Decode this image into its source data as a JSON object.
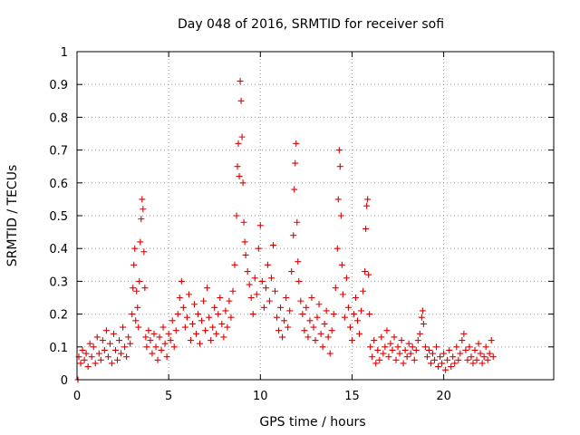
{
  "chart_data": {
    "type": "scatter",
    "title": "Day 048 of 2016, SRMTID for receiver sofi",
    "xlabel": "GPS time / hours",
    "ylabel": "SRMTID / TECUs",
    "xlim": [
      0,
      26
    ],
    "ylim": [
      0,
      1
    ],
    "xticks": [
      0,
      5,
      10,
      15,
      20
    ],
    "xtick_labels": [
      "0",
      "5",
      "10",
      "15",
      "20"
    ],
    "yticks": [
      0,
      0.1,
      0.2,
      0.3,
      0.4,
      0.5,
      0.6,
      0.7,
      0.8,
      0.9,
      1
    ],
    "ytick_labels": [
      "0",
      "0.1",
      "0.2",
      "0.3",
      "0.4",
      "0.5",
      "0.6",
      "0.7",
      "0.8",
      "0.9",
      "1"
    ],
    "grid": true,
    "marker": "+",
    "series": [
      {
        "name": "SRMTID",
        "color": "#e00000",
        "points": [
          [
            0.05,
            0.0
          ],
          [
            0.1,
            0.07
          ],
          [
            0.2,
            0.05
          ],
          [
            0.3,
            0.09
          ],
          [
            0.4,
            0.06
          ],
          [
            0.5,
            0.08
          ],
          [
            0.6,
            0.04
          ],
          [
            0.7,
            0.11
          ],
          [
            0.8,
            0.07
          ],
          [
            0.9,
            0.1
          ],
          [
            1.0,
            0.05
          ],
          [
            1.1,
            0.13
          ],
          [
            1.2,
            0.08
          ],
          [
            1.3,
            0.06
          ],
          [
            1.4,
            0.12
          ],
          [
            1.5,
            0.09
          ],
          [
            1.6,
            0.15
          ],
          [
            1.7,
            0.07
          ],
          [
            1.8,
            0.11
          ],
          [
            1.9,
            0.05
          ],
          [
            2.0,
            0.14
          ],
          [
            2.1,
            0.09
          ],
          [
            2.2,
            0.06
          ],
          [
            2.3,
            0.12
          ],
          [
            2.4,
            0.08
          ],
          [
            2.5,
            0.16
          ],
          [
            2.6,
            0.1
          ],
          [
            2.7,
            0.07
          ],
          [
            2.8,
            0.13
          ],
          [
            2.9,
            0.11
          ],
          [
            3.0,
            0.2
          ],
          [
            3.05,
            0.28
          ],
          [
            3.1,
            0.35
          ],
          [
            3.15,
            0.4
          ],
          [
            3.2,
            0.18
          ],
          [
            3.25,
            0.27
          ],
          [
            3.3,
            0.22
          ],
          [
            3.35,
            0.16
          ],
          [
            3.4,
            0.3
          ],
          [
            3.45,
            0.42
          ],
          [
            3.5,
            0.49
          ],
          [
            3.55,
            0.55
          ],
          [
            3.6,
            0.52
          ],
          [
            3.65,
            0.39
          ],
          [
            3.7,
            0.28
          ],
          [
            3.75,
            0.13
          ],
          [
            3.8,
            0.1
          ],
          [
            3.9,
            0.15
          ],
          [
            4.0,
            0.12
          ],
          [
            4.1,
            0.08
          ],
          [
            4.2,
            0.14
          ],
          [
            4.3,
            0.1
          ],
          [
            4.4,
            0.06
          ],
          [
            4.5,
            0.13
          ],
          [
            4.6,
            0.09
          ],
          [
            4.7,
            0.16
          ],
          [
            4.8,
            0.11
          ],
          [
            4.9,
            0.07
          ],
          [
            5.0,
            0.14
          ],
          [
            5.1,
            0.12
          ],
          [
            5.2,
            0.18
          ],
          [
            5.3,
            0.1
          ],
          [
            5.4,
            0.15
          ],
          [
            5.5,
            0.2
          ],
          [
            5.6,
            0.25
          ],
          [
            5.7,
            0.3
          ],
          [
            5.8,
            0.22
          ],
          [
            5.9,
            0.16
          ],
          [
            6.0,
            0.19
          ],
          [
            6.1,
            0.26
          ],
          [
            6.2,
            0.12
          ],
          [
            6.3,
            0.17
          ],
          [
            6.4,
            0.23
          ],
          [
            6.5,
            0.14
          ],
          [
            6.6,
            0.2
          ],
          [
            6.7,
            0.11
          ],
          [
            6.8,
            0.18
          ],
          [
            6.9,
            0.24
          ],
          [
            7.0,
            0.15
          ],
          [
            7.1,
            0.28
          ],
          [
            7.2,
            0.19
          ],
          [
            7.3,
            0.12
          ],
          [
            7.4,
            0.16
          ],
          [
            7.5,
            0.22
          ],
          [
            7.6,
            0.14
          ],
          [
            7.7,
            0.2
          ],
          [
            7.8,
            0.25
          ],
          [
            7.9,
            0.17
          ],
          [
            8.0,
            0.13
          ],
          [
            8.1,
            0.21
          ],
          [
            8.2,
            0.16
          ],
          [
            8.3,
            0.24
          ],
          [
            8.4,
            0.19
          ],
          [
            8.5,
            0.27
          ],
          [
            8.6,
            0.35
          ],
          [
            8.7,
            0.5
          ],
          [
            8.75,
            0.65
          ],
          [
            8.8,
            0.72
          ],
          [
            8.85,
            0.62
          ],
          [
            8.9,
            0.91
          ],
          [
            8.95,
            0.85
          ],
          [
            9.0,
            0.74
          ],
          [
            9.05,
            0.6
          ],
          [
            9.1,
            0.48
          ],
          [
            9.15,
            0.42
          ],
          [
            9.2,
            0.38
          ],
          [
            9.3,
            0.33
          ],
          [
            9.4,
            0.29
          ],
          [
            9.5,
            0.25
          ],
          [
            9.6,
            0.2
          ],
          [
            9.7,
            0.31
          ],
          [
            9.8,
            0.26
          ],
          [
            9.9,
            0.4
          ],
          [
            10.0,
            0.47
          ],
          [
            10.1,
            0.3
          ],
          [
            10.2,
            0.22
          ],
          [
            10.3,
            0.28
          ],
          [
            10.4,
            0.35
          ],
          [
            10.5,
            0.24
          ],
          [
            10.6,
            0.31
          ],
          [
            10.7,
            0.41
          ],
          [
            10.8,
            0.27
          ],
          [
            10.9,
            0.19
          ],
          [
            11.0,
            0.15
          ],
          [
            11.1,
            0.22
          ],
          [
            11.2,
            0.13
          ],
          [
            11.3,
            0.18
          ],
          [
            11.4,
            0.25
          ],
          [
            11.5,
            0.16
          ],
          [
            11.6,
            0.21
          ],
          [
            11.7,
            0.33
          ],
          [
            11.8,
            0.44
          ],
          [
            11.85,
            0.58
          ],
          [
            11.9,
            0.66
          ],
          [
            11.95,
            0.72
          ],
          [
            12.0,
            0.48
          ],
          [
            12.05,
            0.36
          ],
          [
            12.1,
            0.3
          ],
          [
            12.2,
            0.24
          ],
          [
            12.3,
            0.2
          ],
          [
            12.4,
            0.15
          ],
          [
            12.5,
            0.22
          ],
          [
            12.6,
            0.13
          ],
          [
            12.7,
            0.18
          ],
          [
            12.8,
            0.25
          ],
          [
            12.9,
            0.16
          ],
          [
            13.0,
            0.12
          ],
          [
            13.1,
            0.19
          ],
          [
            13.2,
            0.23
          ],
          [
            13.3,
            0.14
          ],
          [
            13.4,
            0.1
          ],
          [
            13.5,
            0.17
          ],
          [
            13.6,
            0.21
          ],
          [
            13.7,
            0.13
          ],
          [
            13.8,
            0.08
          ],
          [
            13.9,
            0.15
          ],
          [
            14.0,
            0.2
          ],
          [
            14.1,
            0.28
          ],
          [
            14.2,
            0.4
          ],
          [
            14.25,
            0.55
          ],
          [
            14.3,
            0.7
          ],
          [
            14.35,
            0.65
          ],
          [
            14.4,
            0.5
          ],
          [
            14.45,
            0.35
          ],
          [
            14.5,
            0.26
          ],
          [
            14.6,
            0.19
          ],
          [
            14.7,
            0.31
          ],
          [
            14.8,
            0.22
          ],
          [
            14.9,
            0.16
          ],
          [
            15.0,
            0.12
          ],
          [
            15.1,
            0.2
          ],
          [
            15.2,
            0.25
          ],
          [
            15.3,
            0.18
          ],
          [
            15.4,
            0.14
          ],
          [
            15.5,
            0.21
          ],
          [
            15.6,
            0.27
          ],
          [
            15.7,
            0.33
          ],
          [
            15.75,
            0.46
          ],
          [
            15.8,
            0.53
          ],
          [
            15.85,
            0.55
          ],
          [
            15.9,
            0.32
          ],
          [
            15.95,
            0.2
          ],
          [
            16.0,
            0.1
          ],
          [
            16.1,
            0.07
          ],
          [
            16.2,
            0.12
          ],
          [
            16.3,
            0.05
          ],
          [
            16.4,
            0.09
          ],
          [
            16.5,
            0.06
          ],
          [
            16.6,
            0.13
          ],
          [
            16.7,
            0.08
          ],
          [
            16.8,
            0.1
          ],
          [
            16.9,
            0.15
          ],
          [
            17.0,
            0.07
          ],
          [
            17.1,
            0.11
          ],
          [
            17.2,
            0.09
          ],
          [
            17.3,
            0.13
          ],
          [
            17.4,
            0.06
          ],
          [
            17.5,
            0.1
          ],
          [
            17.6,
            0.08
          ],
          [
            17.7,
            0.12
          ],
          [
            17.8,
            0.05
          ],
          [
            17.9,
            0.09
          ],
          [
            18.0,
            0.07
          ],
          [
            18.1,
            0.11
          ],
          [
            18.2,
            0.08
          ],
          [
            18.3,
            0.1
          ],
          [
            18.4,
            0.06
          ],
          [
            18.5,
            0.09
          ],
          [
            18.6,
            0.12
          ],
          [
            18.7,
            0.14
          ],
          [
            18.8,
            0.19
          ],
          [
            18.85,
            0.21
          ],
          [
            18.9,
            0.17
          ],
          [
            19.0,
            0.1
          ],
          [
            19.1,
            0.07
          ],
          [
            19.2,
            0.09
          ],
          [
            19.3,
            0.05
          ],
          [
            19.4,
            0.08
          ],
          [
            19.5,
            0.06
          ],
          [
            19.6,
            0.1
          ],
          [
            19.7,
            0.04
          ],
          [
            19.8,
            0.07
          ],
          [
            19.9,
            0.05
          ],
          [
            20.0,
            0.08
          ],
          [
            20.1,
            0.03
          ],
          [
            20.2,
            0.06
          ],
          [
            20.3,
            0.09
          ],
          [
            20.4,
            0.04
          ],
          [
            20.5,
            0.07
          ],
          [
            20.6,
            0.05
          ],
          [
            20.7,
            0.1
          ],
          [
            20.8,
            0.06
          ],
          [
            20.9,
            0.08
          ],
          [
            21.0,
            0.12
          ],
          [
            21.1,
            0.14
          ],
          [
            21.2,
            0.09
          ],
          [
            21.3,
            0.06
          ],
          [
            21.4,
            0.1
          ],
          [
            21.5,
            0.07
          ],
          [
            21.6,
            0.05
          ],
          [
            21.7,
            0.09
          ],
          [
            21.8,
            0.06
          ],
          [
            21.9,
            0.11
          ],
          [
            22.0,
            0.08
          ],
          [
            22.1,
            0.05
          ],
          [
            22.2,
            0.07
          ],
          [
            22.3,
            0.1
          ],
          [
            22.4,
            0.06
          ],
          [
            22.5,
            0.08
          ],
          [
            22.6,
            0.12
          ],
          [
            22.7,
            0.07
          ]
        ]
      }
    ]
  }
}
